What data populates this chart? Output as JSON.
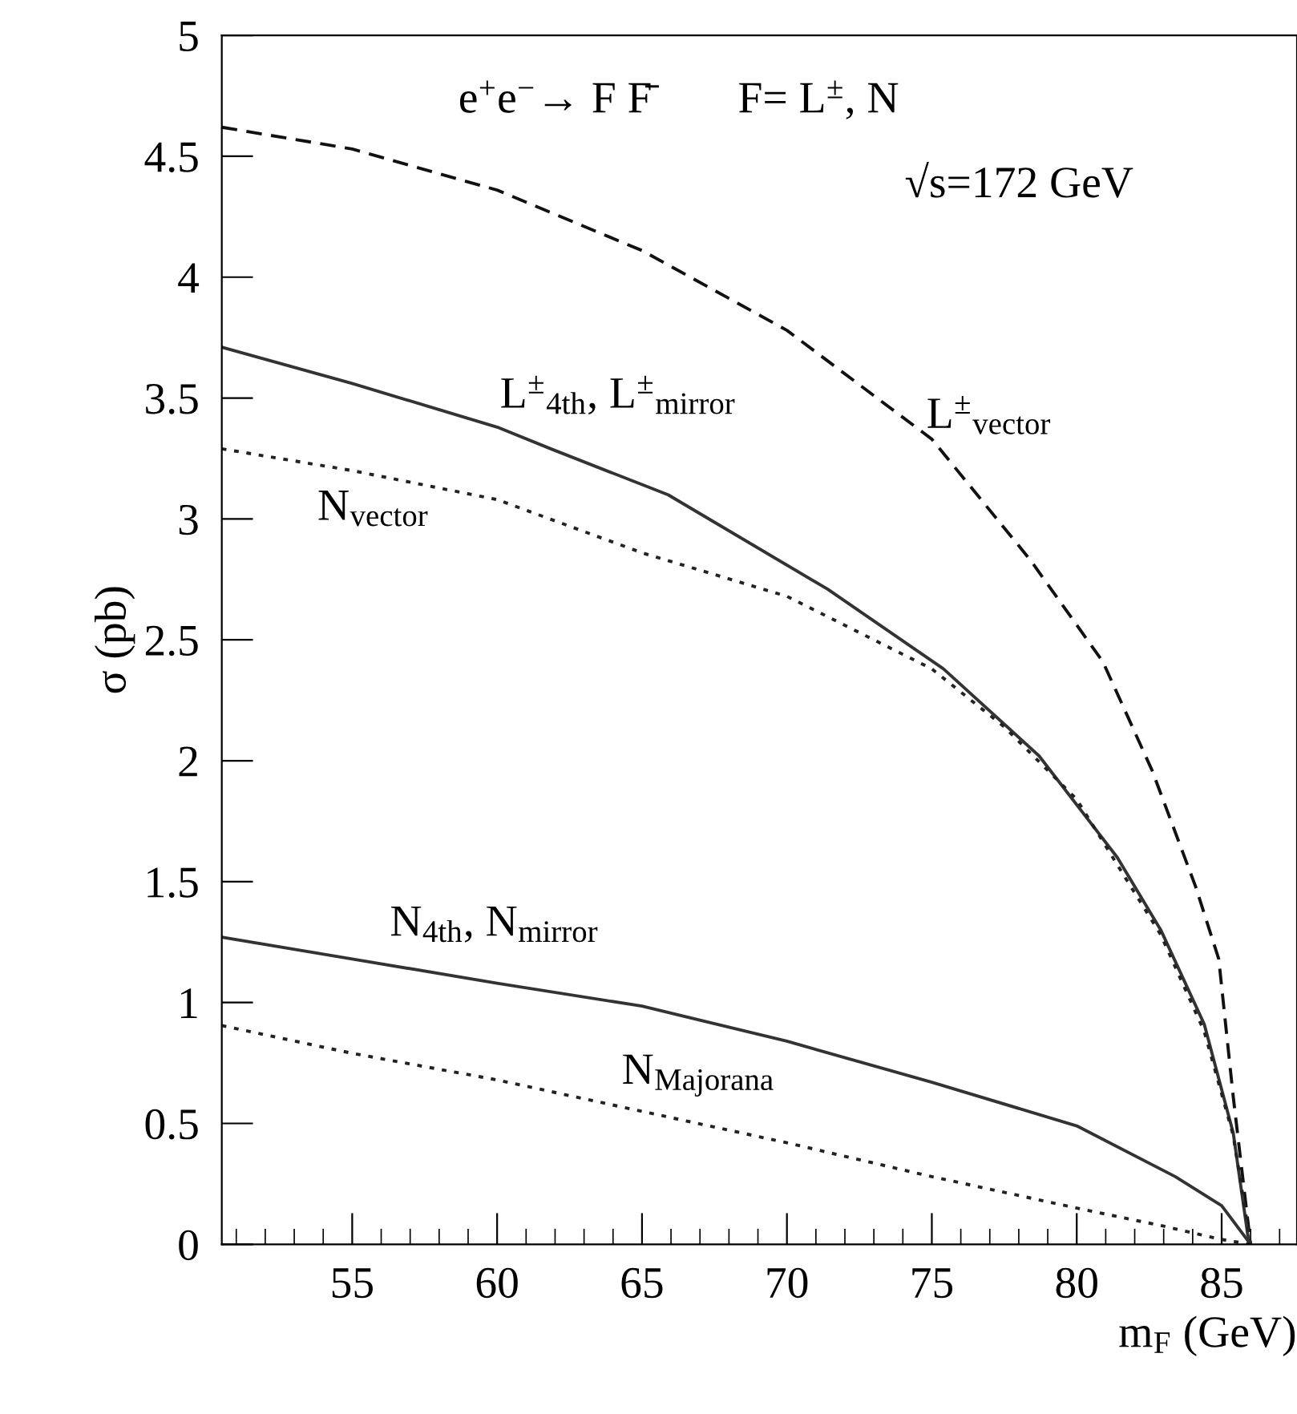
{
  "chart_data": {
    "type": "line",
    "xlabel": "m$_{F}$ (GeV)",
    "ylabel": "σ (pb)",
    "xlim": [
      50.5,
      87.6
    ],
    "ylim": [
      0,
      5
    ],
    "xticks": [
      55,
      60,
      65,
      70,
      75,
      80,
      85
    ],
    "yticks": [
      0,
      0.5,
      1,
      1.5,
      2,
      2.5,
      3,
      3.5,
      4,
      4.5,
      5
    ],
    "grid": false,
    "legend": false,
    "series": [
      {
        "name": "L$^{±}$$_{vector}$",
        "color": "#111111",
        "line_style": "dashed",
        "x": [
          50.5,
          55,
          60,
          65,
          70,
          75,
          78.4,
          80.9,
          82.6,
          84.1,
          84.9,
          85.4,
          85.9,
          86
        ],
        "values": [
          4.62,
          4.53,
          4.36,
          4.11,
          3.78,
          3.33,
          2.83,
          2.41,
          1.96,
          1.48,
          1.18,
          0.61,
          0.1,
          0
        ]
      },
      {
        "name": "L$^{±}$$_{4th}$, L$^{±}$$_{mirror}$",
        "color": "#333333",
        "line_style": "solid",
        "x": [
          50.5,
          55,
          60,
          61.85,
          65.9,
          71.4,
          75.4,
          78.7,
          81.4,
          82.9,
          84.4,
          85.4,
          85.9,
          86
        ],
        "values": [
          3.71,
          3.56,
          3.38,
          3.29,
          3.1,
          2.71,
          2.38,
          2.02,
          1.6,
          1.3,
          0.91,
          0.46,
          0.04,
          0
        ]
      },
      {
        "name": "N$_{vector}$",
        "color": "#222222",
        "line_style": "dotted",
        "x": [
          50.5,
          55,
          60,
          65,
          70,
          75,
          77.5,
          80,
          82.9,
          84.4,
          85.4,
          86
        ],
        "values": [
          3.29,
          3.2,
          3.08,
          2.86,
          2.68,
          2.38,
          2.14,
          1.84,
          1.28,
          0.88,
          0.45,
          0
        ]
      },
      {
        "name": "N$_{4th}$, N$_{mirror}$",
        "color": "#333333",
        "line_style": "solid",
        "x": [
          50.5,
          55,
          60,
          65,
          70,
          75,
          80,
          83.4,
          85,
          86
        ],
        "values": [
          1.27,
          1.18,
          1.08,
          0.985,
          0.84,
          0.67,
          0.49,
          0.28,
          0.16,
          0
        ]
      },
      {
        "name": "N$_{Majorana}$",
        "color": "#222222",
        "line_style": "dotted",
        "x": [
          50.5,
          55,
          60,
          65,
          70,
          75,
          80,
          83,
          85,
          86
        ],
        "values": [
          0.905,
          0.79,
          0.68,
          0.55,
          0.42,
          0.28,
          0.15,
          0.075,
          0.02,
          0
        ]
      }
    ],
    "annotations": [
      "e$^{+}$e$^{−}$→ F F̄",
      "F= L$^{±}$, N",
      "√s=172 GeV"
    ]
  }
}
